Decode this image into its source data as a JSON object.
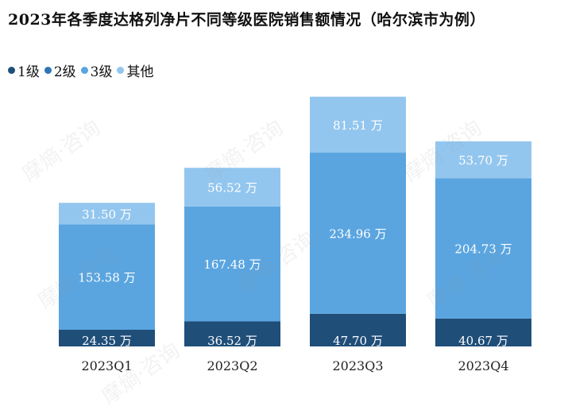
{
  "title": "2023年各季度达格列净片不同等级医院销售额情况（哈尔滨市为例）",
  "watermark": "摩熵·咨询",
  "chart_data": {
    "type": "bar",
    "stacked": true,
    "categories": [
      "2023Q1",
      "2023Q2",
      "2023Q3",
      "2023Q4"
    ],
    "unit": "万",
    "legend_position": "top-left",
    "grid": false,
    "series": [
      {
        "name": "1级",
        "color": "#1f4e79",
        "values": [
          24.35,
          36.52,
          47.7,
          40.67
        ],
        "labels": [
          "24.35 万",
          "36.52 万",
          "47.70 万",
          "40.67 万"
        ]
      },
      {
        "name": "2级",
        "color": "#2e75b6",
        "values": [
          0,
          0,
          0,
          0
        ],
        "labels": [
          "",
          "",
          "",
          ""
        ]
      },
      {
        "name": "3级",
        "color": "#5aa5e0",
        "values": [
          153.58,
          167.48,
          234.96,
          204.73
        ],
        "labels": [
          "153.58 万",
          "167.48 万",
          "234.96 万",
          "204.73 万"
        ]
      },
      {
        "name": "其他",
        "color": "#93c6ee",
        "values": [
          31.5,
          56.52,
          81.51,
          53.7
        ],
        "labels": [
          "31.50 万",
          "56.52 万",
          "81.51 万",
          "53.70 万"
        ]
      }
    ]
  }
}
